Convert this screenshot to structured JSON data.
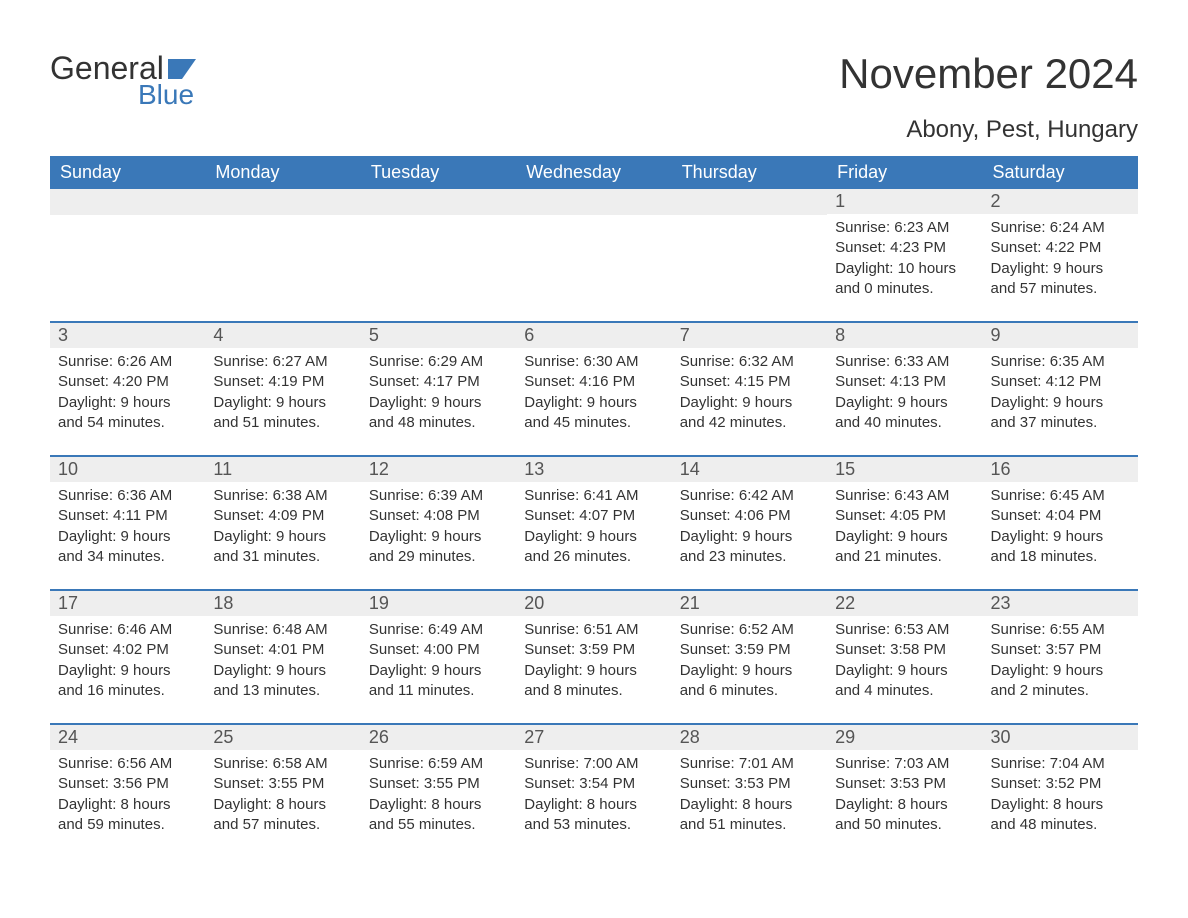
{
  "logo": {
    "text_general": "General",
    "text_blue": "Blue"
  },
  "title": "November 2024",
  "location": "Abony, Pest, Hungary",
  "colors": {
    "header_bg": "#3a78b8",
    "header_text": "#ffffff",
    "date_bar_bg": "#eeeeee",
    "week_border": "#3a78b8",
    "body_text": "#333333"
  },
  "day_names": [
    "Sunday",
    "Monday",
    "Tuesday",
    "Wednesday",
    "Thursday",
    "Friday",
    "Saturday"
  ],
  "weeks": [
    [
      null,
      null,
      null,
      null,
      null,
      {
        "date": "1",
        "sunrise": "Sunrise: 6:23 AM",
        "sunset": "Sunset: 4:23 PM",
        "daylight": "Daylight: 10 hours and 0 minutes."
      },
      {
        "date": "2",
        "sunrise": "Sunrise: 6:24 AM",
        "sunset": "Sunset: 4:22 PM",
        "daylight": "Daylight: 9 hours and 57 minutes."
      }
    ],
    [
      {
        "date": "3",
        "sunrise": "Sunrise: 6:26 AM",
        "sunset": "Sunset: 4:20 PM",
        "daylight": "Daylight: 9 hours and 54 minutes."
      },
      {
        "date": "4",
        "sunrise": "Sunrise: 6:27 AM",
        "sunset": "Sunset: 4:19 PM",
        "daylight": "Daylight: 9 hours and 51 minutes."
      },
      {
        "date": "5",
        "sunrise": "Sunrise: 6:29 AM",
        "sunset": "Sunset: 4:17 PM",
        "daylight": "Daylight: 9 hours and 48 minutes."
      },
      {
        "date": "6",
        "sunrise": "Sunrise: 6:30 AM",
        "sunset": "Sunset: 4:16 PM",
        "daylight": "Daylight: 9 hours and 45 minutes."
      },
      {
        "date": "7",
        "sunrise": "Sunrise: 6:32 AM",
        "sunset": "Sunset: 4:15 PM",
        "daylight": "Daylight: 9 hours and 42 minutes."
      },
      {
        "date": "8",
        "sunrise": "Sunrise: 6:33 AM",
        "sunset": "Sunset: 4:13 PM",
        "daylight": "Daylight: 9 hours and 40 minutes."
      },
      {
        "date": "9",
        "sunrise": "Sunrise: 6:35 AM",
        "sunset": "Sunset: 4:12 PM",
        "daylight": "Daylight: 9 hours and 37 minutes."
      }
    ],
    [
      {
        "date": "10",
        "sunrise": "Sunrise: 6:36 AM",
        "sunset": "Sunset: 4:11 PM",
        "daylight": "Daylight: 9 hours and 34 minutes."
      },
      {
        "date": "11",
        "sunrise": "Sunrise: 6:38 AM",
        "sunset": "Sunset: 4:09 PM",
        "daylight": "Daylight: 9 hours and 31 minutes."
      },
      {
        "date": "12",
        "sunrise": "Sunrise: 6:39 AM",
        "sunset": "Sunset: 4:08 PM",
        "daylight": "Daylight: 9 hours and 29 minutes."
      },
      {
        "date": "13",
        "sunrise": "Sunrise: 6:41 AM",
        "sunset": "Sunset: 4:07 PM",
        "daylight": "Daylight: 9 hours and 26 minutes."
      },
      {
        "date": "14",
        "sunrise": "Sunrise: 6:42 AM",
        "sunset": "Sunset: 4:06 PM",
        "daylight": "Daylight: 9 hours and 23 minutes."
      },
      {
        "date": "15",
        "sunrise": "Sunrise: 6:43 AM",
        "sunset": "Sunset: 4:05 PM",
        "daylight": "Daylight: 9 hours and 21 minutes."
      },
      {
        "date": "16",
        "sunrise": "Sunrise: 6:45 AM",
        "sunset": "Sunset: 4:04 PM",
        "daylight": "Daylight: 9 hours and 18 minutes."
      }
    ],
    [
      {
        "date": "17",
        "sunrise": "Sunrise: 6:46 AM",
        "sunset": "Sunset: 4:02 PM",
        "daylight": "Daylight: 9 hours and 16 minutes."
      },
      {
        "date": "18",
        "sunrise": "Sunrise: 6:48 AM",
        "sunset": "Sunset: 4:01 PM",
        "daylight": "Daylight: 9 hours and 13 minutes."
      },
      {
        "date": "19",
        "sunrise": "Sunrise: 6:49 AM",
        "sunset": "Sunset: 4:00 PM",
        "daylight": "Daylight: 9 hours and 11 minutes."
      },
      {
        "date": "20",
        "sunrise": "Sunrise: 6:51 AM",
        "sunset": "Sunset: 3:59 PM",
        "daylight": "Daylight: 9 hours and 8 minutes."
      },
      {
        "date": "21",
        "sunrise": "Sunrise: 6:52 AM",
        "sunset": "Sunset: 3:59 PM",
        "daylight": "Daylight: 9 hours and 6 minutes."
      },
      {
        "date": "22",
        "sunrise": "Sunrise: 6:53 AM",
        "sunset": "Sunset: 3:58 PM",
        "daylight": "Daylight: 9 hours and 4 minutes."
      },
      {
        "date": "23",
        "sunrise": "Sunrise: 6:55 AM",
        "sunset": "Sunset: 3:57 PM",
        "daylight": "Daylight: 9 hours and 2 minutes."
      }
    ],
    [
      {
        "date": "24",
        "sunrise": "Sunrise: 6:56 AM",
        "sunset": "Sunset: 3:56 PM",
        "daylight": "Daylight: 8 hours and 59 minutes."
      },
      {
        "date": "25",
        "sunrise": "Sunrise: 6:58 AM",
        "sunset": "Sunset: 3:55 PM",
        "daylight": "Daylight: 8 hours and 57 minutes."
      },
      {
        "date": "26",
        "sunrise": "Sunrise: 6:59 AM",
        "sunset": "Sunset: 3:55 PM",
        "daylight": "Daylight: 8 hours and 55 minutes."
      },
      {
        "date": "27",
        "sunrise": "Sunrise: 7:00 AM",
        "sunset": "Sunset: 3:54 PM",
        "daylight": "Daylight: 8 hours and 53 minutes."
      },
      {
        "date": "28",
        "sunrise": "Sunrise: 7:01 AM",
        "sunset": "Sunset: 3:53 PM",
        "daylight": "Daylight: 8 hours and 51 minutes."
      },
      {
        "date": "29",
        "sunrise": "Sunrise: 7:03 AM",
        "sunset": "Sunset: 3:53 PM",
        "daylight": "Daylight: 8 hours and 50 minutes."
      },
      {
        "date": "30",
        "sunrise": "Sunrise: 7:04 AM",
        "sunset": "Sunset: 3:52 PM",
        "daylight": "Daylight: 8 hours and 48 minutes."
      }
    ]
  ]
}
